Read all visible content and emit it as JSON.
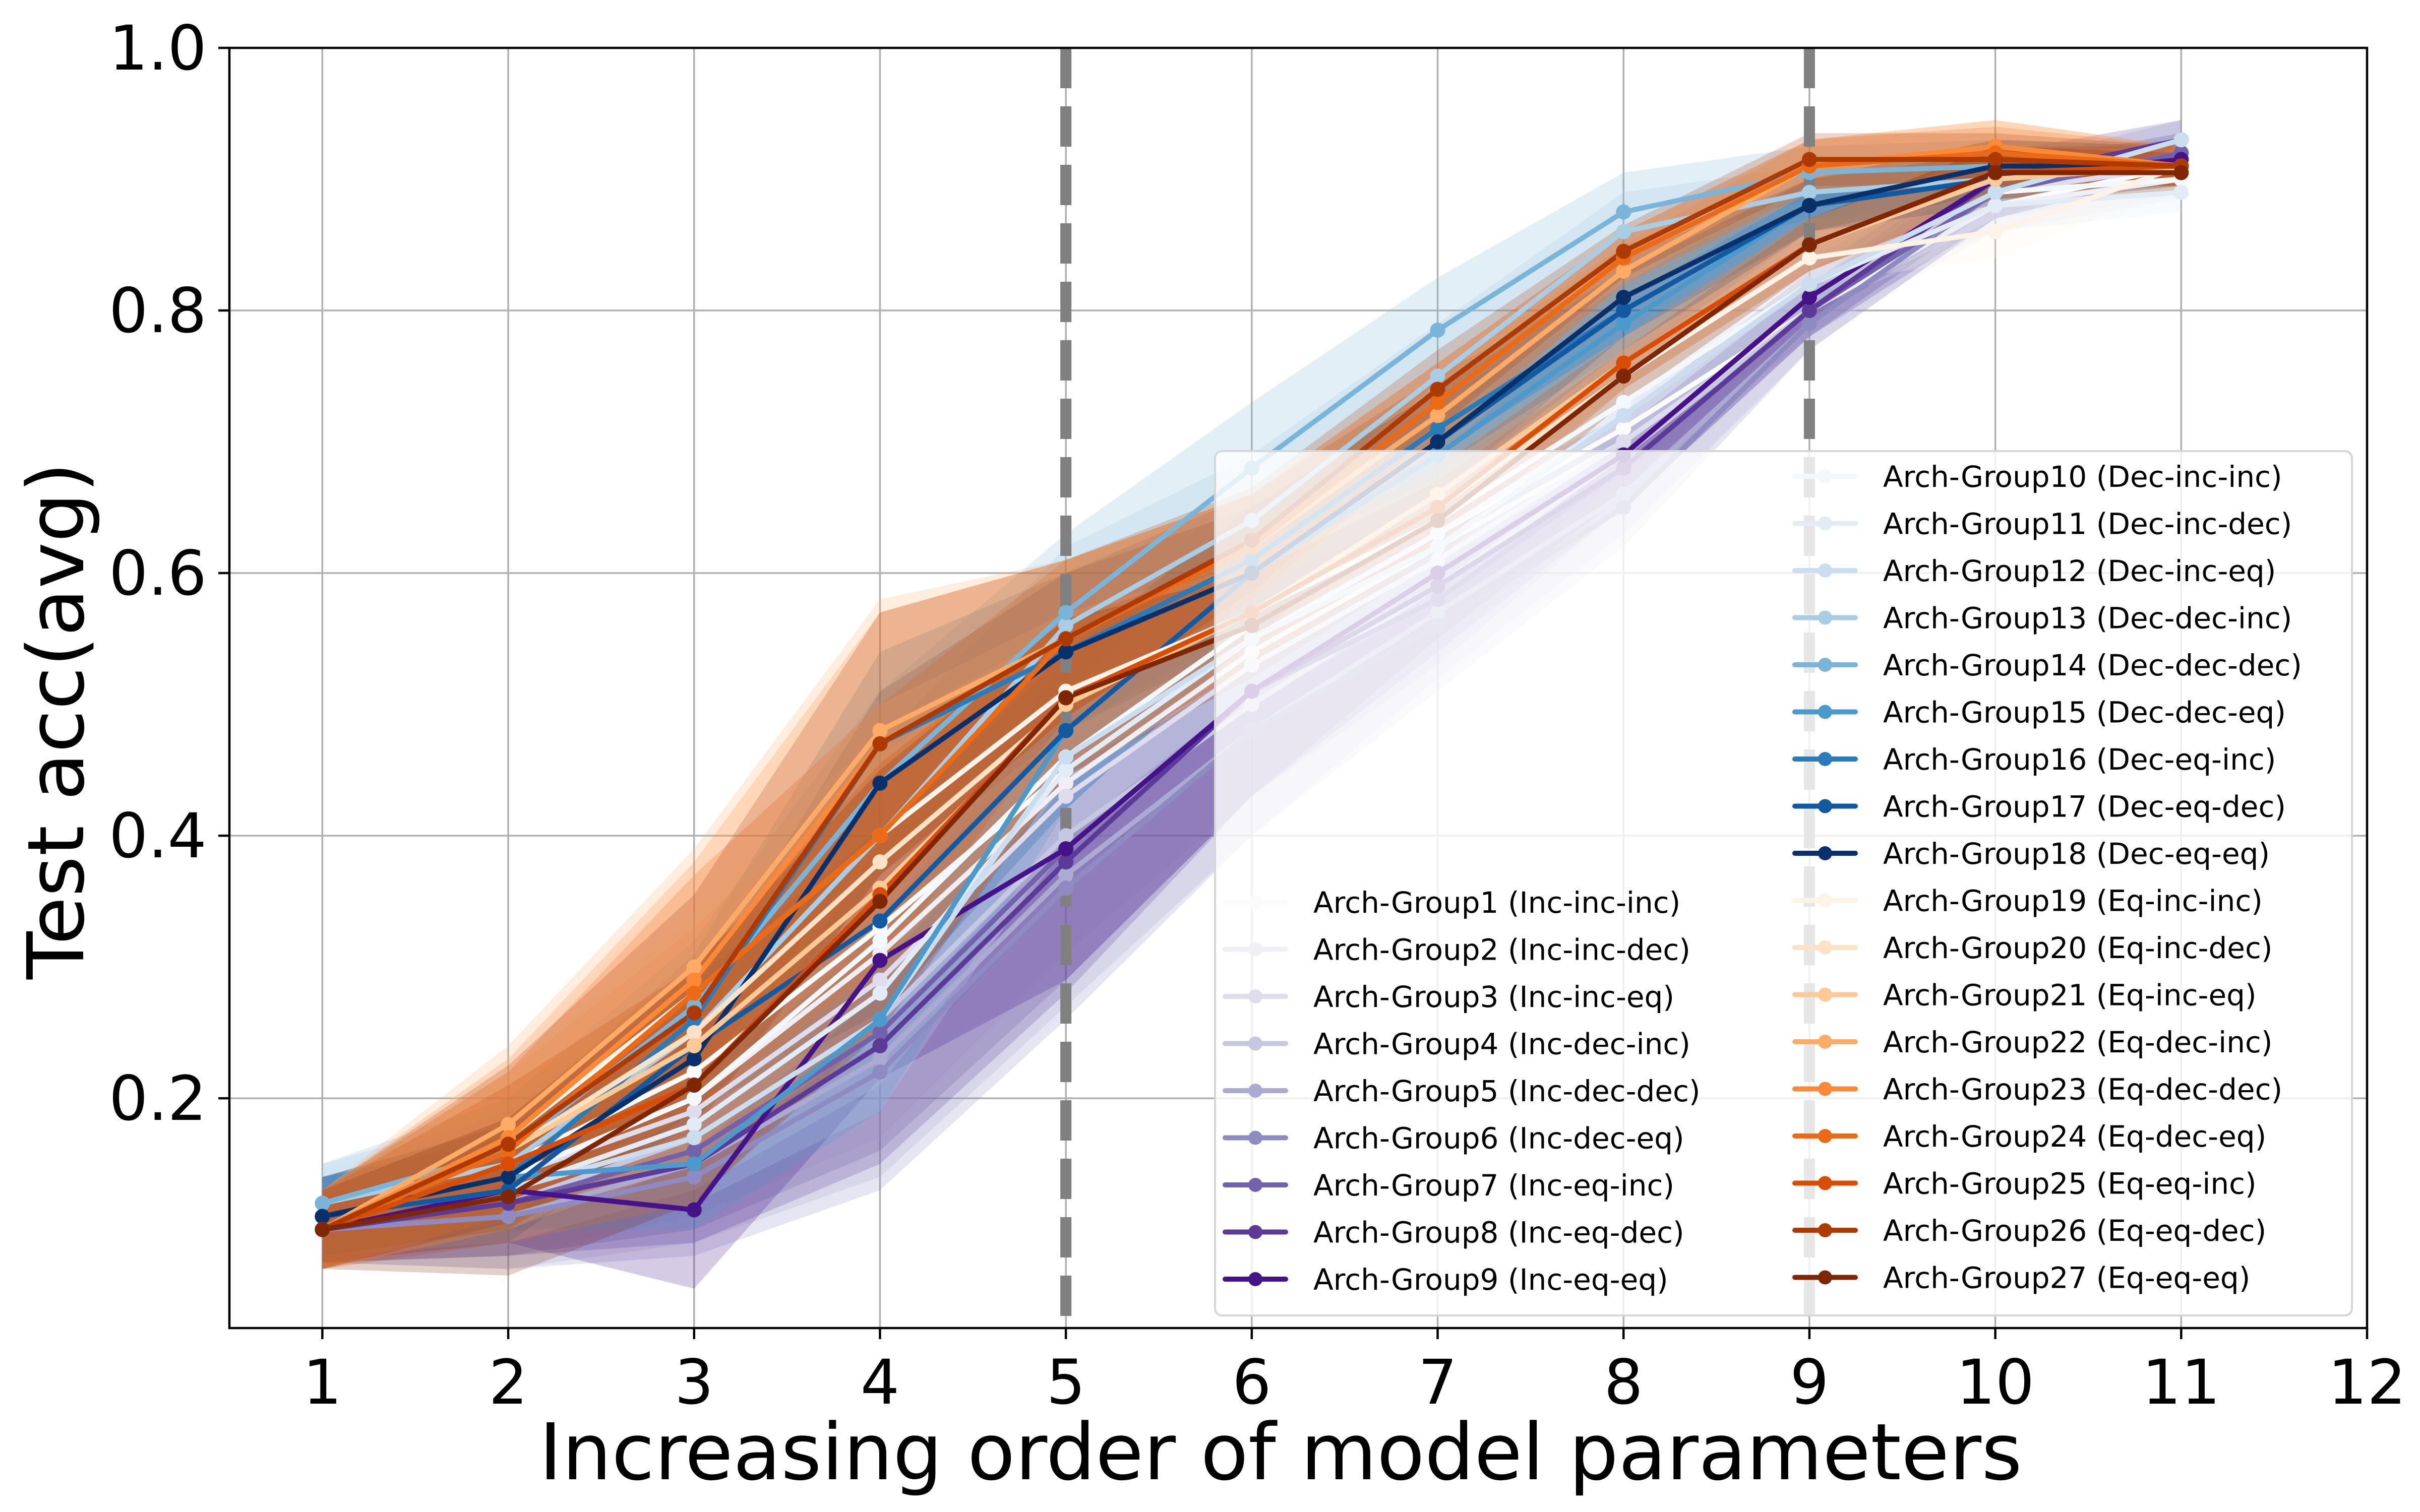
{
  "chart_data": {
    "type": "line",
    "xlabel": "Increasing order of model parameters",
    "ylabel": "Test acc(avg)",
    "xlim": [
      0.5,
      12
    ],
    "ylim": [
      0.025,
      1.0
    ],
    "x_ticks": [
      1,
      2,
      3,
      4,
      5,
      6,
      7,
      8,
      9,
      10,
      11,
      12
    ],
    "y_ticks": [
      0.2,
      0.4,
      0.6,
      0.8,
      1.0
    ],
    "x_tick_labels": [
      "1",
      "2",
      "3",
      "4",
      "5",
      "6",
      "7",
      "8",
      "9",
      "10",
      "11",
      "12"
    ],
    "y_tick_labels": [
      "0.2",
      "0.4",
      "0.6",
      "0.8",
      "1.0"
    ],
    "grid": true,
    "vertical_lines": [
      5,
      9
    ],
    "vertical_line_color": "#808080",
    "legend_placement": "bottom-right, two columns",
    "series": [
      {
        "name": "Arch-Group1 (Inc-inc-inc)",
        "color": "#fbfbfd",
        "x": [
          1,
          2,
          3,
          4,
          5,
          6,
          7,
          8,
          9,
          10,
          11
        ],
        "y": [
          0.12,
          0.15,
          0.22,
          0.33,
          0.45,
          0.55,
          0.63,
          0.71,
          0.8,
          0.88,
          0.91
        ],
        "spread": [
          0.025,
          0.04,
          0.06,
          0.08,
          0.07,
          0.05,
          0.04,
          0.03,
          0.02,
          0.02,
          0.015
        ]
      },
      {
        "name": "Arch-Group2 (Inc-inc-dec)",
        "color": "#f0eff6",
        "x": [
          1,
          2,
          3,
          4,
          5,
          6,
          7,
          8,
          9,
          10,
          11
        ],
        "y": [
          0.11,
          0.14,
          0.2,
          0.31,
          0.44,
          0.54,
          0.62,
          0.7,
          0.8,
          0.88,
          0.9
        ],
        "spread": [
          0.025,
          0.04,
          0.06,
          0.08,
          0.07,
          0.05,
          0.04,
          0.03,
          0.02,
          0.02,
          0.015
        ]
      },
      {
        "name": "Arch-Group3 (Inc-inc-eq)",
        "color": "#dedced",
        "x": [
          1,
          2,
          3,
          4,
          5,
          6,
          7,
          8,
          9,
          10,
          11
        ],
        "y": [
          0.11,
          0.14,
          0.19,
          0.29,
          0.43,
          0.53,
          0.61,
          0.7,
          0.8,
          0.89,
          0.91
        ],
        "spread": [
          0.025,
          0.04,
          0.06,
          0.08,
          0.07,
          0.05,
          0.04,
          0.03,
          0.02,
          0.02,
          0.015
        ]
      },
      {
        "name": "Arch-Group4 (Inc-dec-inc)",
        "color": "#c6c7e1",
        "x": [
          1,
          2,
          3,
          4,
          5,
          6,
          7,
          8,
          9,
          10,
          11
        ],
        "y": [
          0.1,
          0.12,
          0.17,
          0.26,
          0.4,
          0.5,
          0.59,
          0.69,
          0.8,
          0.89,
          0.92
        ],
        "spread": [
          0.025,
          0.04,
          0.06,
          0.09,
          0.09,
          0.07,
          0.05,
          0.03,
          0.02,
          0.02,
          0.015
        ]
      },
      {
        "name": "Arch-Group5 (Inc-dec-dec)",
        "color": "#abaad1",
        "x": [
          1,
          2,
          3,
          4,
          5,
          6,
          7,
          8,
          9,
          10,
          11
        ],
        "y": [
          0.1,
          0.11,
          0.15,
          0.23,
          0.37,
          0.48,
          0.57,
          0.66,
          0.79,
          0.89,
          0.92
        ],
        "spread": [
          0.025,
          0.04,
          0.06,
          0.09,
          0.1,
          0.08,
          0.05,
          0.03,
          0.02,
          0.02,
          0.015
        ]
      },
      {
        "name": "Arch-Group6 (Inc-dec-eq)",
        "color": "#8e8bc2",
        "x": [
          1,
          2,
          3,
          4,
          5,
          6,
          7,
          8,
          9,
          10,
          11
        ],
        "y": [
          0.1,
          0.11,
          0.14,
          0.22,
          0.36,
          0.48,
          0.56,
          0.65,
          0.79,
          0.89,
          0.93
        ],
        "spread": [
          0.025,
          0.04,
          0.06,
          0.09,
          0.1,
          0.08,
          0.05,
          0.03,
          0.02,
          0.02,
          0.015
        ]
      },
      {
        "name": "Arch-Group7 (Inc-eq-inc)",
        "color": "#7262ac",
        "x": [
          1,
          2,
          3,
          4,
          5,
          6,
          7,
          8,
          9,
          10,
          11
        ],
        "y": [
          0.1,
          0.12,
          0.16,
          0.25,
          0.39,
          0.51,
          0.58,
          0.68,
          0.8,
          0.89,
          0.92
        ],
        "spread": [
          0.025,
          0.04,
          0.06,
          0.09,
          0.1,
          0.08,
          0.05,
          0.03,
          0.02,
          0.02,
          0.015
        ]
      },
      {
        "name": "Arch-Group8 (Inc-eq-dec)",
        "color": "#5b3a98",
        "x": [
          1,
          2,
          3,
          4,
          5,
          6,
          7,
          8,
          9,
          10,
          11
        ],
        "y": [
          0.1,
          0.12,
          0.15,
          0.24,
          0.38,
          0.51,
          0.59,
          0.68,
          0.8,
          0.9,
          0.93
        ],
        "spread": [
          0.025,
          0.04,
          0.06,
          0.09,
          0.1,
          0.08,
          0.05,
          0.03,
          0.02,
          0.02,
          0.015
        ]
      },
      {
        "name": "Arch-Group9 (Inc-eq-eq)",
        "color": "#461287",
        "x": [
          1,
          2,
          3,
          4,
          5,
          6,
          7,
          8,
          9,
          10,
          11
        ],
        "y": [
          0.1,
          0.13,
          0.115,
          0.305,
          0.39,
          0.51,
          0.6,
          0.69,
          0.81,
          0.9,
          0.915
        ],
        "spread": [
          0.025,
          0.04,
          0.06,
          0.09,
          0.1,
          0.08,
          0.05,
          0.03,
          0.02,
          0.02,
          0.015
        ]
      },
      {
        "name": "Arch-Group10 (Dec-inc-inc)",
        "color": "#f3f8fd",
        "x": [
          1,
          2,
          3,
          4,
          5,
          6,
          7,
          8,
          9,
          10,
          11
        ],
        "y": [
          0.11,
          0.14,
          0.2,
          0.32,
          0.46,
          0.56,
          0.64,
          0.73,
          0.82,
          0.89,
          0.9
        ],
        "spread": [
          0.03,
          0.04,
          0.05,
          0.07,
          0.06,
          0.05,
          0.04,
          0.03,
          0.02,
          0.02,
          0.015
        ]
      },
      {
        "name": "Arch-Group11 (Dec-inc-dec)",
        "color": "#e1ecf7",
        "x": [
          1,
          2,
          3,
          4,
          5,
          6,
          7,
          8,
          9,
          10,
          11
        ],
        "y": [
          0.11,
          0.13,
          0.18,
          0.28,
          0.45,
          0.55,
          0.63,
          0.72,
          0.82,
          0.88,
          0.89
        ],
        "spread": [
          0.03,
          0.04,
          0.05,
          0.07,
          0.06,
          0.05,
          0.04,
          0.03,
          0.02,
          0.02,
          0.015
        ]
      },
      {
        "name": "Arch-Group12 (Dec-inc-eq)",
        "color": "#cadef0",
        "x": [
          1,
          2,
          3,
          4,
          5,
          6,
          7,
          8,
          9,
          10,
          11
        ],
        "y": [
          0.11,
          0.13,
          0.17,
          0.26,
          0.46,
          0.55,
          0.62,
          0.72,
          0.82,
          0.89,
          0.93
        ],
        "spread": [
          0.03,
          0.04,
          0.05,
          0.07,
          0.06,
          0.05,
          0.04,
          0.03,
          0.02,
          0.02,
          0.015
        ]
      },
      {
        "name": "Arch-Group13 (Dec-dec-inc)",
        "color": "#a8cde4",
        "x": [
          1,
          2,
          3,
          4,
          5,
          6,
          7,
          8,
          9,
          10,
          11
        ],
        "y": [
          0.12,
          0.15,
          0.25,
          0.4,
          0.56,
          0.64,
          0.75,
          0.86,
          0.89,
          0.9,
          0.91
        ],
        "spread": [
          0.03,
          0.04,
          0.05,
          0.07,
          0.06,
          0.05,
          0.04,
          0.03,
          0.02,
          0.02,
          0.015
        ]
      },
      {
        "name": "Arch-Group14 (Dec-dec-dec)",
        "color": "#7ab5d9",
        "x": [
          1,
          2,
          3,
          4,
          5,
          6,
          7,
          8,
          9,
          10,
          11
        ],
        "y": [
          0.12,
          0.16,
          0.27,
          0.44,
          0.57,
          0.68,
          0.785,
          0.875,
          0.905,
          0.91,
          0.91
        ],
        "spread": [
          0.03,
          0.04,
          0.05,
          0.07,
          0.06,
          0.05,
          0.04,
          0.03,
          0.02,
          0.02,
          0.015
        ]
      },
      {
        "name": "Arch-Group15 (Dec-dec-eq)",
        "color": "#4c99cb",
        "x": [
          1,
          2,
          3,
          4,
          5,
          6,
          7,
          8,
          9,
          10,
          11
        ],
        "y": [
          0.11,
          0.14,
          0.15,
          0.26,
          0.48,
          0.6,
          0.69,
          0.79,
          0.88,
          0.91,
          0.91
        ],
        "spread": [
          0.03,
          0.04,
          0.05,
          0.07,
          0.06,
          0.05,
          0.04,
          0.03,
          0.02,
          0.02,
          0.015
        ]
      },
      {
        "name": "Arch-Group16 (Dec-eq-inc)",
        "color": "#2a7bba",
        "x": [
          1,
          2,
          3,
          4,
          5,
          6,
          7,
          8,
          9,
          10,
          11
        ],
        "y": [
          0.11,
          0.14,
          0.26,
          0.47,
          0.54,
          0.61,
          0.71,
          0.8,
          0.88,
          0.9,
          0.91
        ],
        "spread": [
          0.03,
          0.04,
          0.05,
          0.07,
          0.06,
          0.05,
          0.04,
          0.03,
          0.02,
          0.02,
          0.015
        ]
      },
      {
        "name": "Arch-Group17 (Dec-eq-dec)",
        "color": "#115aa1",
        "x": [
          1,
          2,
          3,
          4,
          5,
          6,
          7,
          8,
          9,
          10,
          11
        ],
        "y": [
          0.11,
          0.13,
          0.24,
          0.335,
          0.48,
          0.6,
          0.7,
          0.8,
          0.88,
          0.9,
          0.91
        ],
        "spread": [
          0.03,
          0.04,
          0.05,
          0.07,
          0.06,
          0.05,
          0.04,
          0.03,
          0.02,
          0.02,
          0.015
        ]
      },
      {
        "name": "Arch-Group18 (Dec-eq-eq)",
        "color": "#08306b",
        "x": [
          1,
          2,
          3,
          4,
          5,
          6,
          7,
          8,
          9,
          10,
          11
        ],
        "y": [
          0.11,
          0.14,
          0.23,
          0.44,
          0.54,
          0.6,
          0.7,
          0.81,
          0.88,
          0.91,
          0.91
        ],
        "spread": [
          0.03,
          0.04,
          0.05,
          0.07,
          0.06,
          0.05,
          0.04,
          0.03,
          0.02,
          0.02,
          0.015
        ]
      },
      {
        "name": "Arch-Group19 (Eq-inc-inc)",
        "color": "#fff2e6",
        "x": [
          1,
          2,
          3,
          4,
          5,
          6,
          7,
          8,
          9,
          10,
          11
        ],
        "y": [
          0.1,
          0.17,
          0.28,
          0.4,
          0.51,
          0.57,
          0.64,
          0.75,
          0.84,
          0.86,
          0.91
        ],
        "spread": [
          0.03,
          0.06,
          0.09,
          0.1,
          0.06,
          0.04,
          0.03,
          0.02,
          0.02,
          0.02,
          0.015
        ]
      },
      {
        "name": "Arch-Group20 (Eq-inc-dec)",
        "color": "#fee2c6",
        "x": [
          1,
          2,
          3,
          4,
          5,
          6,
          7,
          8,
          9,
          10,
          11
        ],
        "y": [
          0.1,
          0.16,
          0.25,
          0.38,
          0.5,
          0.57,
          0.65,
          0.75,
          0.85,
          0.9,
          0.91
        ],
        "spread": [
          0.03,
          0.06,
          0.09,
          0.1,
          0.06,
          0.04,
          0.03,
          0.02,
          0.02,
          0.02,
          0.015
        ]
      },
      {
        "name": "Arch-Group21 (Eq-inc-eq)",
        "color": "#fdc997",
        "x": [
          1,
          2,
          3,
          4,
          5,
          6,
          7,
          8,
          9,
          10,
          11
        ],
        "y": [
          0.1,
          0.16,
          0.24,
          0.36,
          0.5,
          0.57,
          0.66,
          0.76,
          0.85,
          0.9,
          0.91
        ],
        "spread": [
          0.03,
          0.06,
          0.09,
          0.1,
          0.06,
          0.04,
          0.03,
          0.02,
          0.02,
          0.02,
          0.015
        ]
      },
      {
        "name": "Arch-Group22 (Eq-dec-inc)",
        "color": "#fdab67",
        "x": [
          1,
          2,
          3,
          4,
          5,
          6,
          7,
          8,
          9,
          10,
          11
        ],
        "y": [
          0.1,
          0.18,
          0.3,
          0.48,
          0.55,
          0.62,
          0.72,
          0.83,
          0.91,
          0.925,
          0.91
        ],
        "spread": [
          0.03,
          0.06,
          0.09,
          0.1,
          0.06,
          0.04,
          0.03,
          0.02,
          0.02,
          0.02,
          0.015
        ]
      },
      {
        "name": "Arch-Group23 (Eq-dec-dec)",
        "color": "#fb8937",
        "x": [
          1,
          2,
          3,
          4,
          5,
          6,
          7,
          8,
          9,
          10,
          11
        ],
        "y": [
          0.1,
          0.17,
          0.29,
          0.47,
          0.55,
          0.62,
          0.73,
          0.84,
          0.91,
          0.925,
          0.91
        ],
        "spread": [
          0.03,
          0.06,
          0.09,
          0.1,
          0.06,
          0.04,
          0.03,
          0.02,
          0.02,
          0.02,
          0.015
        ]
      },
      {
        "name": "Arch-Group24 (Eq-dec-eq)",
        "color": "#ec6a15",
        "x": [
          1,
          2,
          3,
          4,
          5,
          6,
          7,
          8,
          9,
          10,
          11
        ],
        "y": [
          0.1,
          0.16,
          0.28,
          0.4,
          0.55,
          0.62,
          0.73,
          0.84,
          0.91,
          0.92,
          0.91
        ],
        "spread": [
          0.03,
          0.06,
          0.09,
          0.1,
          0.06,
          0.04,
          0.03,
          0.02,
          0.02,
          0.02,
          0.015
        ]
      },
      {
        "name": "Arch-Group25 (Eq-eq-inc)",
        "color": "#d84d03",
        "x": [
          1,
          2,
          3,
          4,
          5,
          6,
          7,
          8,
          9,
          10,
          11
        ],
        "y": [
          0.1,
          0.15,
          0.21,
          0.355,
          0.505,
          0.57,
          0.65,
          0.76,
          0.85,
          0.905,
          0.91
        ],
        "spread": [
          0.03,
          0.06,
          0.09,
          0.1,
          0.06,
          0.04,
          0.03,
          0.02,
          0.02,
          0.02,
          0.015
        ]
      },
      {
        "name": "Arch-Group26 (Eq-eq-dec)",
        "color": "#ad3a03",
        "x": [
          1,
          2,
          3,
          4,
          5,
          6,
          7,
          8,
          9,
          10,
          11
        ],
        "y": [
          0.1,
          0.165,
          0.265,
          0.47,
          0.55,
          0.625,
          0.74,
          0.845,
          0.915,
          0.915,
          0.91
        ],
        "spread": [
          0.03,
          0.06,
          0.09,
          0.1,
          0.06,
          0.04,
          0.03,
          0.02,
          0.02,
          0.02,
          0.015
        ]
      },
      {
        "name": "Arch-Group27 (Eq-eq-eq)",
        "color": "#7f2704",
        "x": [
          1,
          2,
          3,
          4,
          5,
          6,
          7,
          8,
          9,
          10,
          11
        ],
        "y": [
          0.1,
          0.125,
          0.21,
          0.35,
          0.505,
          0.56,
          0.64,
          0.75,
          0.85,
          0.905,
          0.905
        ],
        "spread": [
          0.03,
          0.06,
          0.09,
          0.1,
          0.06,
          0.04,
          0.03,
          0.02,
          0.02,
          0.02,
          0.015
        ]
      }
    ]
  }
}
